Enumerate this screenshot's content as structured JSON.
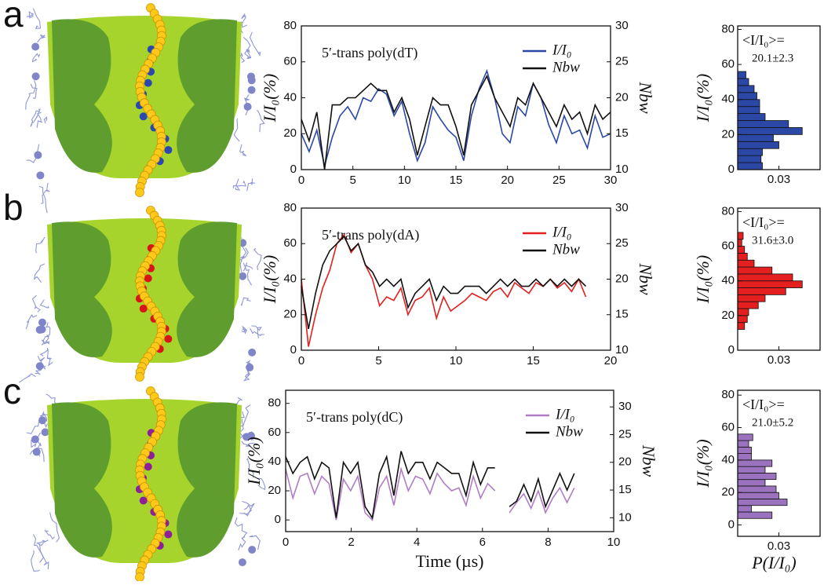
{
  "panel_labels": [
    "a",
    "b",
    "c"
  ],
  "chart_data": [
    {
      "type": "line",
      "title": "5′-trans poly(dT)",
      "ylabel": "I/I₀(%)",
      "y2label": "Nbw",
      "x": [
        0,
        0.75,
        1.5,
        2.25,
        3,
        3.75,
        4.5,
        5.25,
        6,
        6.75,
        7.5,
        8.25,
        9,
        9.75,
        10.5,
        11.25,
        12,
        12.75,
        13.5,
        14.25,
        15,
        15.75,
        16.5,
        17.25,
        18,
        18.75,
        19.5,
        20.25,
        21,
        21.75,
        22.5,
        23.25,
        24,
        24.75,
        25.5,
        26.25,
        27,
        27.75,
        28.5,
        29.25,
        30
      ],
      "series": [
        {
          "name": "I/I₀",
          "color": "#2b48a6",
          "values": [
            20,
            10,
            22,
            2,
            18,
            30,
            35,
            28,
            40,
            38,
            45,
            42,
            30,
            38,
            20,
            5,
            15,
            35,
            28,
            22,
            18,
            5,
            30,
            45,
            55,
            40,
            20,
            15,
            35,
            30,
            48,
            40,
            25,
            15,
            30,
            20,
            22,
            12,
            30,
            18,
            20
          ]
        },
        {
          "name": "Nbw",
          "color": "#111111",
          "axis": "y2",
          "values": [
            17,
            14,
            18,
            10,
            19,
            19,
            20,
            20,
            21,
            22,
            21,
            21,
            18,
            20,
            17,
            12,
            16,
            20,
            19,
            19,
            16,
            12,
            19,
            21,
            23,
            20,
            18,
            16,
            20,
            19,
            22,
            20,
            18,
            16,
            19,
            17,
            18,
            15,
            19,
            17,
            18
          ]
        }
      ],
      "xlim": [
        0,
        30
      ],
      "xticks": [
        0,
        5,
        10,
        15,
        20,
        25,
        30
      ],
      "ylim": [
        0,
        80
      ],
      "yticks": [
        0,
        20,
        40,
        60,
        80
      ],
      "y2lim": [
        10,
        30
      ],
      "y2ticks": [
        10,
        15,
        20,
        25,
        30
      ]
    },
    {
      "type": "histogram",
      "annotation_label": "<I/I₀>=",
      "annotation_value": "20.1±2.3",
      "ylabel": "I/I₀(%)",
      "color": "#2b48a6",
      "bins": [
        0,
        4,
        8,
        12,
        16,
        20,
        24,
        28,
        32,
        36,
        40,
        44,
        48,
        52,
        56
      ],
      "values": [
        0.018,
        0.017,
        0.018,
        0.03,
        0.026,
        0.047,
        0.037,
        0.02,
        0.016,
        0.016,
        0.014,
        0.012,
        0.008,
        0.006
      ],
      "xlim": [
        0,
        0.06
      ],
      "xticks": [
        0.03
      ],
      "ylim": [
        0,
        82
      ],
      "yticks": [
        0,
        20,
        40,
        60,
        80
      ]
    },
    {
      "type": "line",
      "title": "5′-trans poly(dA)",
      "ylabel": "I/I₀(%)",
      "y2label": "Nbw",
      "x": [
        0,
        0.46,
        0.92,
        1.38,
        1.84,
        2.3,
        2.76,
        3.22,
        3.68,
        4.14,
        4.6,
        5.06,
        5.52,
        5.98,
        6.44,
        6.9,
        7.36,
        7.82,
        8.28,
        8.74,
        9.2,
        9.66,
        10.12,
        10.58,
        11.04,
        11.5,
        11.96,
        12.42,
        12.88,
        13.34,
        13.8,
        14.26,
        14.72,
        15.18,
        15.64,
        16.1,
        16.56,
        17.02,
        17.48,
        17.94,
        18.4
      ],
      "series": [
        {
          "name": "I/I₀",
          "color": "#e3201f",
          "values": [
            40,
            2,
            20,
            35,
            45,
            60,
            65,
            55,
            60,
            48,
            40,
            25,
            30,
            28,
            35,
            20,
            28,
            30,
            35,
            18,
            30,
            22,
            25,
            28,
            32,
            30,
            28,
            33,
            35,
            30,
            38,
            35,
            32,
            38,
            36,
            40,
            35,
            38,
            33,
            40,
            30
          ]
        },
        {
          "name": "Nbw",
          "color": "#111111",
          "axis": "y2",
          "values": [
            19,
            13,
            18,
            22,
            24,
            25,
            26,
            24,
            25,
            22,
            21,
            19,
            20,
            19,
            20,
            16,
            18,
            19,
            20,
            17,
            19,
            18,
            18,
            19,
            19,
            19,
            18,
            19,
            20,
            19,
            20,
            19,
            19,
            20,
            19,
            20,
            19,
            20,
            19,
            20,
            19
          ]
        }
      ],
      "xlim": [
        0,
        20
      ],
      "xticks": [
        0,
        5,
        10,
        15,
        20
      ],
      "ylim": [
        0,
        80
      ],
      "yticks": [
        0,
        20,
        40,
        60,
        80
      ],
      "y2lim": [
        10,
        30
      ],
      "y2ticks": [
        10,
        15,
        20,
        25,
        30
      ]
    },
    {
      "type": "histogram",
      "annotation_label": "<I/I₀>=",
      "annotation_value": "31.6±3.0",
      "ylabel": "I/I₀(%)",
      "color": "#e3201f",
      "bins": [
        12,
        16,
        20,
        24,
        28,
        32,
        36,
        40,
        44,
        48,
        52,
        56,
        60,
        64,
        68
      ],
      "values": [
        0.005,
        0.007,
        0.008,
        0.015,
        0.02,
        0.035,
        0.047,
        0.04,
        0.025,
        0.012,
        0.007,
        0.005,
        0.003,
        0.004
      ],
      "xlim": [
        0,
        0.06
      ],
      "xticks": [
        0.03
      ],
      "ylim": [
        0,
        82
      ],
      "yticks": [
        0,
        20,
        40,
        60,
        80
      ]
    },
    {
      "type": "line",
      "title": "5′-trans poly(dC)",
      "ylabel": "I/I₀(%)",
      "y2label": "Nbw",
      "xlabel": "Time (µs)",
      "x": [
        0,
        0.22,
        0.44,
        0.66,
        0.88,
        1.1,
        1.32,
        1.54,
        1.76,
        1.98,
        2.2,
        2.42,
        2.64,
        2.86,
        3.08,
        3.3,
        3.52,
        3.74,
        3.96,
        4.18,
        4.4,
        4.62,
        4.84,
        5.06,
        5.28,
        5.5,
        5.72,
        5.94,
        6.16,
        6.38,
        6.6,
        6.82,
        7.04,
        7.26,
        7.48,
        7.7,
        7.92,
        8.14,
        8.36,
        8.58,
        8.8
      ],
      "series": [
        {
          "name": "I/I₀",
          "color": "#b07cc6",
          "values": [
            35,
            15,
            30,
            32,
            18,
            30,
            25,
            0,
            28,
            20,
            30,
            5,
            0,
            22,
            30,
            10,
            35,
            20,
            30,
            28,
            18,
            32,
            25,
            20,
            22,
            10,
            30,
            15,
            25,
            20,
            null,
            5,
            12,
            18,
            8,
            20,
            5,
            15,
            22,
            12,
            22
          ]
        },
        {
          "name": "Nbw",
          "color": "#111111",
          "axis": "y2",
          "values": [
            21,
            18,
            20,
            21,
            17,
            20,
            19,
            10,
            20,
            18,
            20,
            12,
            10,
            18,
            21,
            14,
            22,
            18,
            20,
            20,
            17,
            20,
            19,
            18,
            18,
            14,
            20,
            16,
            19,
            19,
            null,
            12,
            13,
            16,
            13,
            17,
            12,
            15,
            18,
            15,
            18
          ]
        }
      ],
      "xlim": [
        0,
        10
      ],
      "xticks": [
        0,
        2,
        4,
        6,
        8,
        10
      ],
      "ylim": [
        -8,
        89
      ],
      "yticks": [
        0,
        20,
        40,
        60,
        80
      ],
      "y2lim": [
        7.5,
        33
      ],
      "y2ticks": [
        10,
        15,
        20,
        25,
        30
      ]
    },
    {
      "type": "histogram",
      "annotation_label": "<I/I₀>=",
      "annotation_value": "21.0±5.2",
      "ylabel": "I/I₀(%)",
      "xlabel": "P(I/I₀)",
      "color": "#9a72bd",
      "bins": [
        4,
        8,
        12,
        16,
        20,
        24,
        28,
        32,
        36,
        40,
        44,
        48,
        52,
        56
      ],
      "values": [
        0.025,
        0.01,
        0.036,
        0.03,
        0.028,
        0.02,
        0.028,
        0.02,
        0.025,
        0.01,
        0.01,
        0.008,
        0.011
      ],
      "xlim": [
        0,
        0.06
      ],
      "xticks": [
        0.03
      ],
      "ylim": [
        -7,
        83
      ],
      "yticks": [
        0,
        20,
        40,
        60,
        80
      ]
    }
  ]
}
